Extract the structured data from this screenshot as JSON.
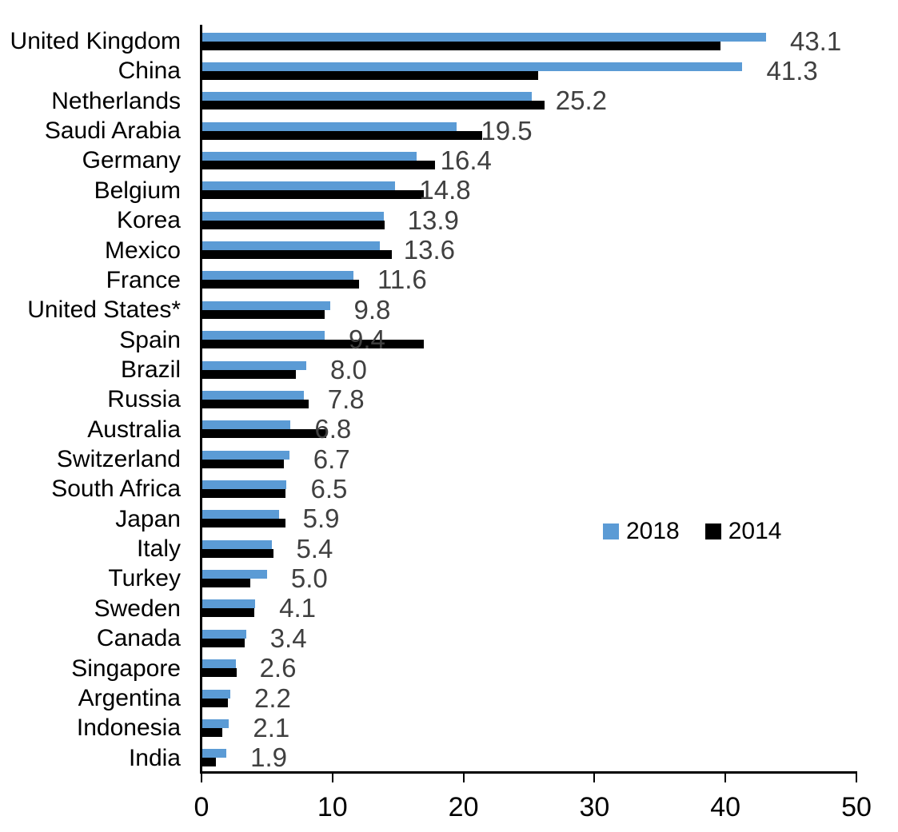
{
  "chart_data": {
    "type": "bar",
    "orientation": "horizontal",
    "title": "",
    "xlabel": "",
    "ylabel": "",
    "xlim": [
      0,
      50
    ],
    "x_ticks": [
      "0",
      "10",
      "20",
      "30",
      "40",
      "50"
    ],
    "grid": false,
    "legend_position": "center-right",
    "categories": [
      "United Kingdom",
      "China",
      "Netherlands",
      "Saudi Arabia",
      "Germany",
      "Belgium",
      "Korea",
      "Mexico",
      "France",
      "United States*",
      "Spain",
      "Brazil",
      "Russia",
      "Australia",
      "Switzerland",
      "South Africa",
      "Japan",
      "Italy",
      "Turkey",
      "Sweden",
      "Canada",
      "Singapore",
      "Argentina",
      "Indonesia",
      "India"
    ],
    "series": [
      {
        "name": "2018",
        "color": "#5B9BD5",
        "values": [
          43.1,
          41.3,
          25.2,
          19.5,
          16.4,
          14.8,
          13.9,
          13.6,
          11.6,
          9.8,
          9.4,
          8.0,
          7.8,
          6.8,
          6.7,
          6.5,
          5.9,
          5.4,
          5.0,
          4.1,
          3.4,
          2.6,
          2.2,
          2.1,
          1.9
        ]
      },
      {
        "name": "2014",
        "color": "#000000",
        "values": [
          39.6,
          25.7,
          26.2,
          21.4,
          17.8,
          17.0,
          14.0,
          14.5,
          12.0,
          9.4,
          17.0,
          7.2,
          8.2,
          9.5,
          6.3,
          6.4,
          6.4,
          5.5,
          3.7,
          4.0,
          3.3,
          2.7,
          2.0,
          1.6,
          1.1
        ]
      }
    ],
    "data_labels": [
      "43.1",
      "41.3",
      "25.2",
      "19.5",
      "16.4",
      "14.8",
      "13.9",
      "13.6",
      "11.6",
      "9.8",
      "9.4",
      "8.0",
      "7.8",
      "6.8",
      "6.7",
      "6.5",
      "5.9",
      "5.4",
      "5.0",
      "4.1",
      "3.4",
      "2.6",
      "2.2",
      "2.1",
      "1.9"
    ],
    "data_label_series": "2018"
  },
  "legend": {
    "items": [
      {
        "label": "2018",
        "color": "#5B9BD5"
      },
      {
        "label": "2014",
        "color": "#000000"
      }
    ]
  },
  "colors": {
    "bar_2018": "#5B9BD5",
    "bar_2014": "#000000",
    "axis": "#000000",
    "value_label": "#404040",
    "category_label": "#000000"
  }
}
